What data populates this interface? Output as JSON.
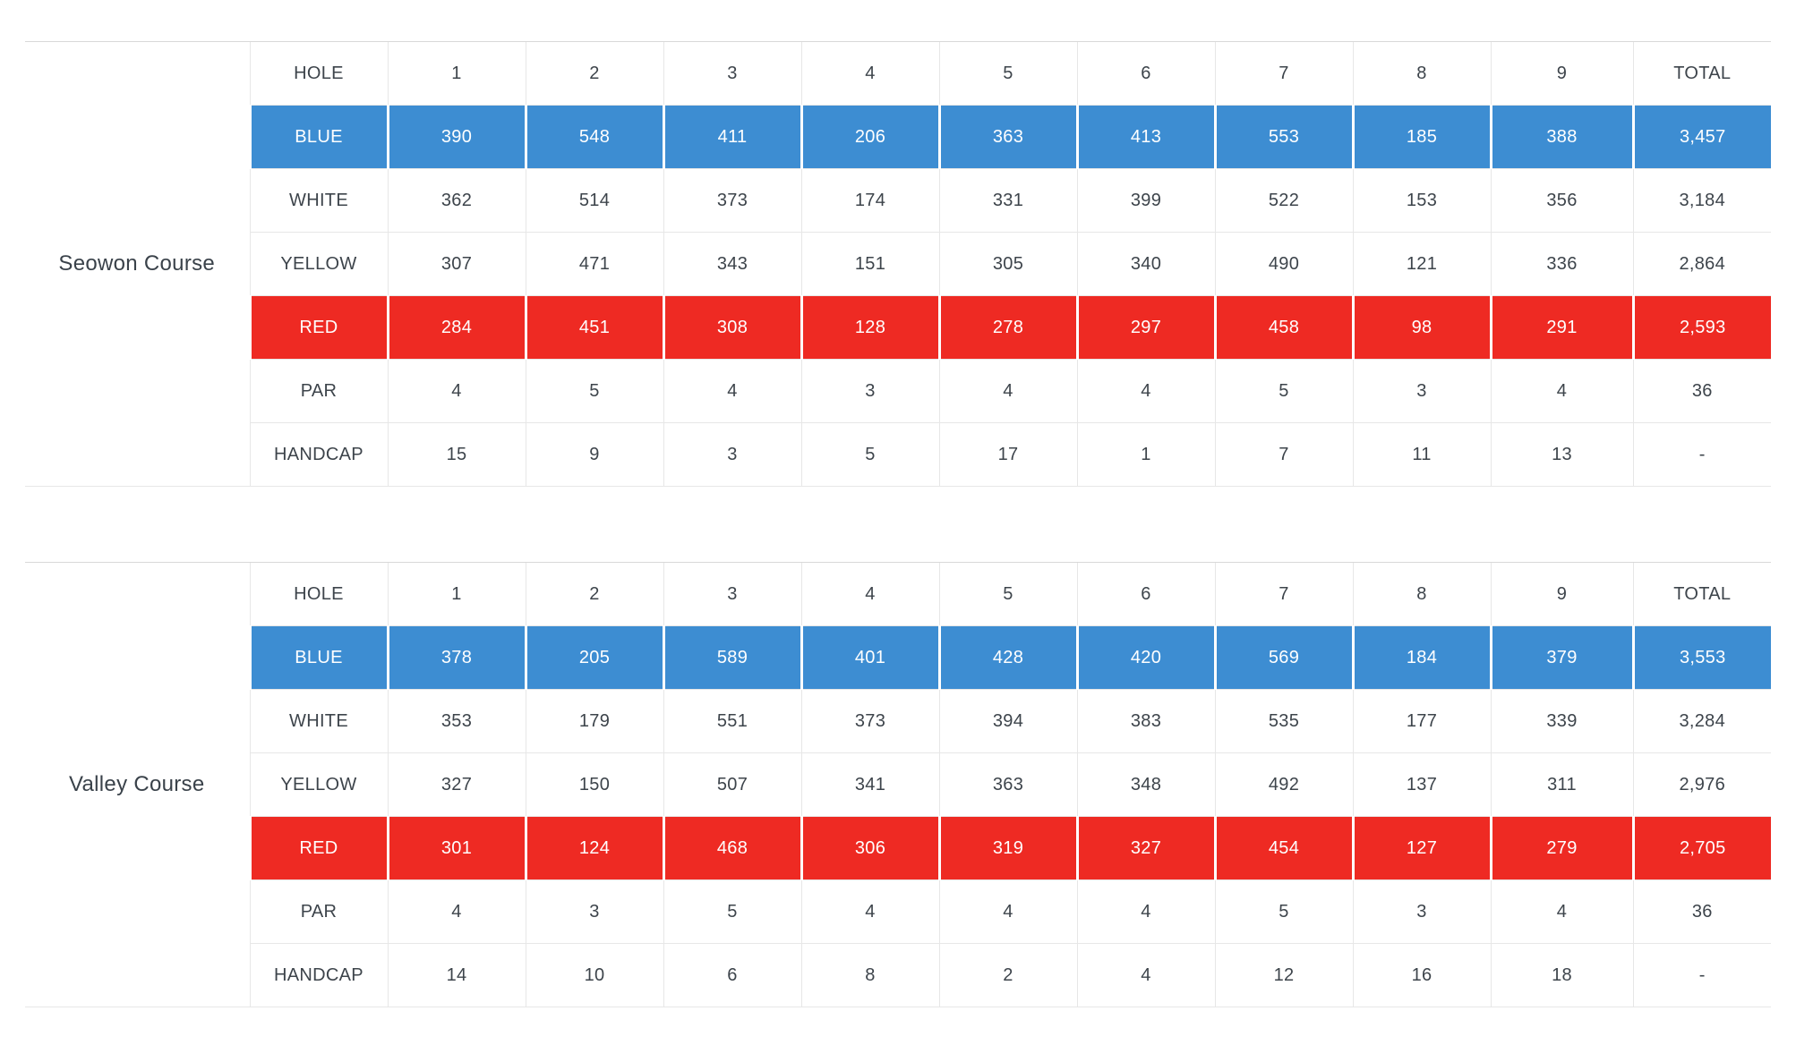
{
  "colors": {
    "blue": "#3d8dd2",
    "red": "#ee2a23",
    "text": "#3d444b",
    "border": "#e7e7e7",
    "white_text": "#ffffff"
  },
  "columns": {
    "hole_label": "HOLE",
    "holes": [
      "1",
      "2",
      "3",
      "4",
      "5",
      "6",
      "7",
      "8",
      "9"
    ],
    "total_label": "TOTAL"
  },
  "courses": [
    {
      "name": "Seowon Course",
      "rows": [
        {
          "label": "BLUE",
          "style": "blue",
          "values": [
            "390",
            "548",
            "411",
            "206",
            "363",
            "413",
            "553",
            "185",
            "388"
          ],
          "total": "3,457"
        },
        {
          "label": "WHITE",
          "style": "plain",
          "values": [
            "362",
            "514",
            "373",
            "174",
            "331",
            "399",
            "522",
            "153",
            "356"
          ],
          "total": "3,184"
        },
        {
          "label": "YELLOW",
          "style": "plain",
          "values": [
            "307",
            "471",
            "343",
            "151",
            "305",
            "340",
            "490",
            "121",
            "336"
          ],
          "total": "2,864"
        },
        {
          "label": "RED",
          "style": "red",
          "values": [
            "284",
            "451",
            "308",
            "128",
            "278",
            "297",
            "458",
            "98",
            "291"
          ],
          "total": "2,593"
        },
        {
          "label": "PAR",
          "style": "plain",
          "values": [
            "4",
            "5",
            "4",
            "3",
            "4",
            "4",
            "5",
            "3",
            "4"
          ],
          "total": "36"
        },
        {
          "label": "HANDCAP",
          "style": "plain",
          "values": [
            "15",
            "9",
            "3",
            "5",
            "17",
            "1",
            "7",
            "11",
            "13"
          ],
          "total": "-"
        }
      ]
    },
    {
      "name": "Valley Course",
      "rows": [
        {
          "label": "BLUE",
          "style": "blue",
          "values": [
            "378",
            "205",
            "589",
            "401",
            "428",
            "420",
            "569",
            "184",
            "379"
          ],
          "total": "3,553"
        },
        {
          "label": "WHITE",
          "style": "plain",
          "values": [
            "353",
            "179",
            "551",
            "373",
            "394",
            "383",
            "535",
            "177",
            "339"
          ],
          "total": "3,284"
        },
        {
          "label": "YELLOW",
          "style": "plain",
          "values": [
            "327",
            "150",
            "507",
            "341",
            "363",
            "348",
            "492",
            "137",
            "311"
          ],
          "total": "2,976"
        },
        {
          "label": "RED",
          "style": "red",
          "values": [
            "301",
            "124",
            "468",
            "306",
            "319",
            "327",
            "454",
            "127",
            "279"
          ],
          "total": "2,705"
        },
        {
          "label": "PAR",
          "style": "plain",
          "values": [
            "4",
            "3",
            "5",
            "4",
            "4",
            "4",
            "5",
            "3",
            "4"
          ],
          "total": "36"
        },
        {
          "label": "HANDCAP",
          "style": "plain",
          "values": [
            "14",
            "10",
            "6",
            "8",
            "2",
            "4",
            "12",
            "16",
            "18"
          ],
          "total": "-"
        }
      ]
    }
  ],
  "chart_data": [
    {
      "type": "table",
      "title": "Seowon Course",
      "columns": [
        "HOLE",
        "1",
        "2",
        "3",
        "4",
        "5",
        "6",
        "7",
        "8",
        "9",
        "TOTAL"
      ],
      "rows": [
        [
          "BLUE",
          390,
          548,
          411,
          206,
          363,
          413,
          553,
          185,
          388,
          3457
        ],
        [
          "WHITE",
          362,
          514,
          373,
          174,
          331,
          399,
          522,
          153,
          356,
          3184
        ],
        [
          "YELLOW",
          307,
          471,
          343,
          151,
          305,
          340,
          490,
          121,
          336,
          2864
        ],
        [
          "RED",
          284,
          451,
          308,
          128,
          278,
          297,
          458,
          98,
          291,
          2593
        ],
        [
          "PAR",
          4,
          5,
          4,
          3,
          4,
          4,
          5,
          3,
          4,
          36
        ],
        [
          "HANDCAP",
          15,
          9,
          3,
          5,
          17,
          1,
          7,
          11,
          13,
          null
        ]
      ]
    },
    {
      "type": "table",
      "title": "Valley Course",
      "columns": [
        "HOLE",
        "1",
        "2",
        "3",
        "4",
        "5",
        "6",
        "7",
        "8",
        "9",
        "TOTAL"
      ],
      "rows": [
        [
          "BLUE",
          378,
          205,
          589,
          401,
          428,
          420,
          569,
          184,
          379,
          3553
        ],
        [
          "WHITE",
          353,
          179,
          551,
          373,
          394,
          383,
          535,
          177,
          339,
          3284
        ],
        [
          "YELLOW",
          327,
          150,
          507,
          341,
          363,
          348,
          492,
          137,
          311,
          2976
        ],
        [
          "RED",
          301,
          124,
          468,
          306,
          319,
          327,
          454,
          127,
          279,
          2705
        ],
        [
          "PAR",
          4,
          3,
          5,
          4,
          4,
          4,
          5,
          3,
          4,
          36
        ],
        [
          "HANDCAP",
          14,
          10,
          6,
          8,
          2,
          4,
          12,
          16,
          18,
          null
        ]
      ]
    }
  ]
}
